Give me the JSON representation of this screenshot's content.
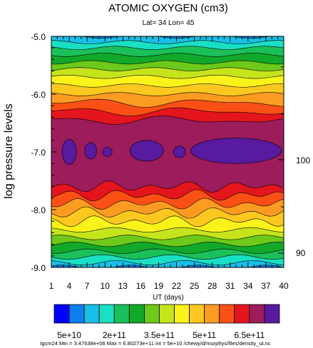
{
  "chart_data": {
    "type": "heatmap",
    "title": "ATOMIC OXYGEN (cm3)",
    "subtitle": "Lat= 34 Lon= 45",
    "xlabel": "UT (days)",
    "ylabel": "log pressure levels",
    "x_ticks": [
      "1",
      "4",
      "7",
      "10",
      "13",
      "16",
      "19",
      "22",
      "25",
      "28",
      "31",
      "34",
      "37",
      "40"
    ],
    "x_range": [
      1,
      40
    ],
    "y_ticks": [
      "-5.0",
      "-6.0",
      "-7.0",
      "-8.0",
      "-9.0"
    ],
    "y_range": [
      -9.0,
      -5.0
    ],
    "right_axis_labels": [
      "100",
      "90"
    ],
    "colorbar": {
      "colors": [
        "#0000ff",
        "#0d7fec",
        "#18bfe8",
        "#19dfc3",
        "#1bc05b",
        "#12a92a",
        "#6dc91a",
        "#c5e41b",
        "#f9f31a",
        "#fcc81f",
        "#fc9b22",
        "#fa5015",
        "#e5151d",
        "#9c1c5c",
        "#581a9f"
      ],
      "labels": [
        "5e+10",
        "2e+11",
        "3.5e+11",
        "5e+11",
        "6.5e+11"
      ]
    },
    "contour_interval": "5e+10",
    "min": "3.47638e+06",
    "max": "6.80273e+11"
  },
  "footer": "tgcm24 Min = 3.47638e+06  Max = 6.80273e+11  int = 5e+10 /chewy/d/murphys/files/density_ut.nc"
}
